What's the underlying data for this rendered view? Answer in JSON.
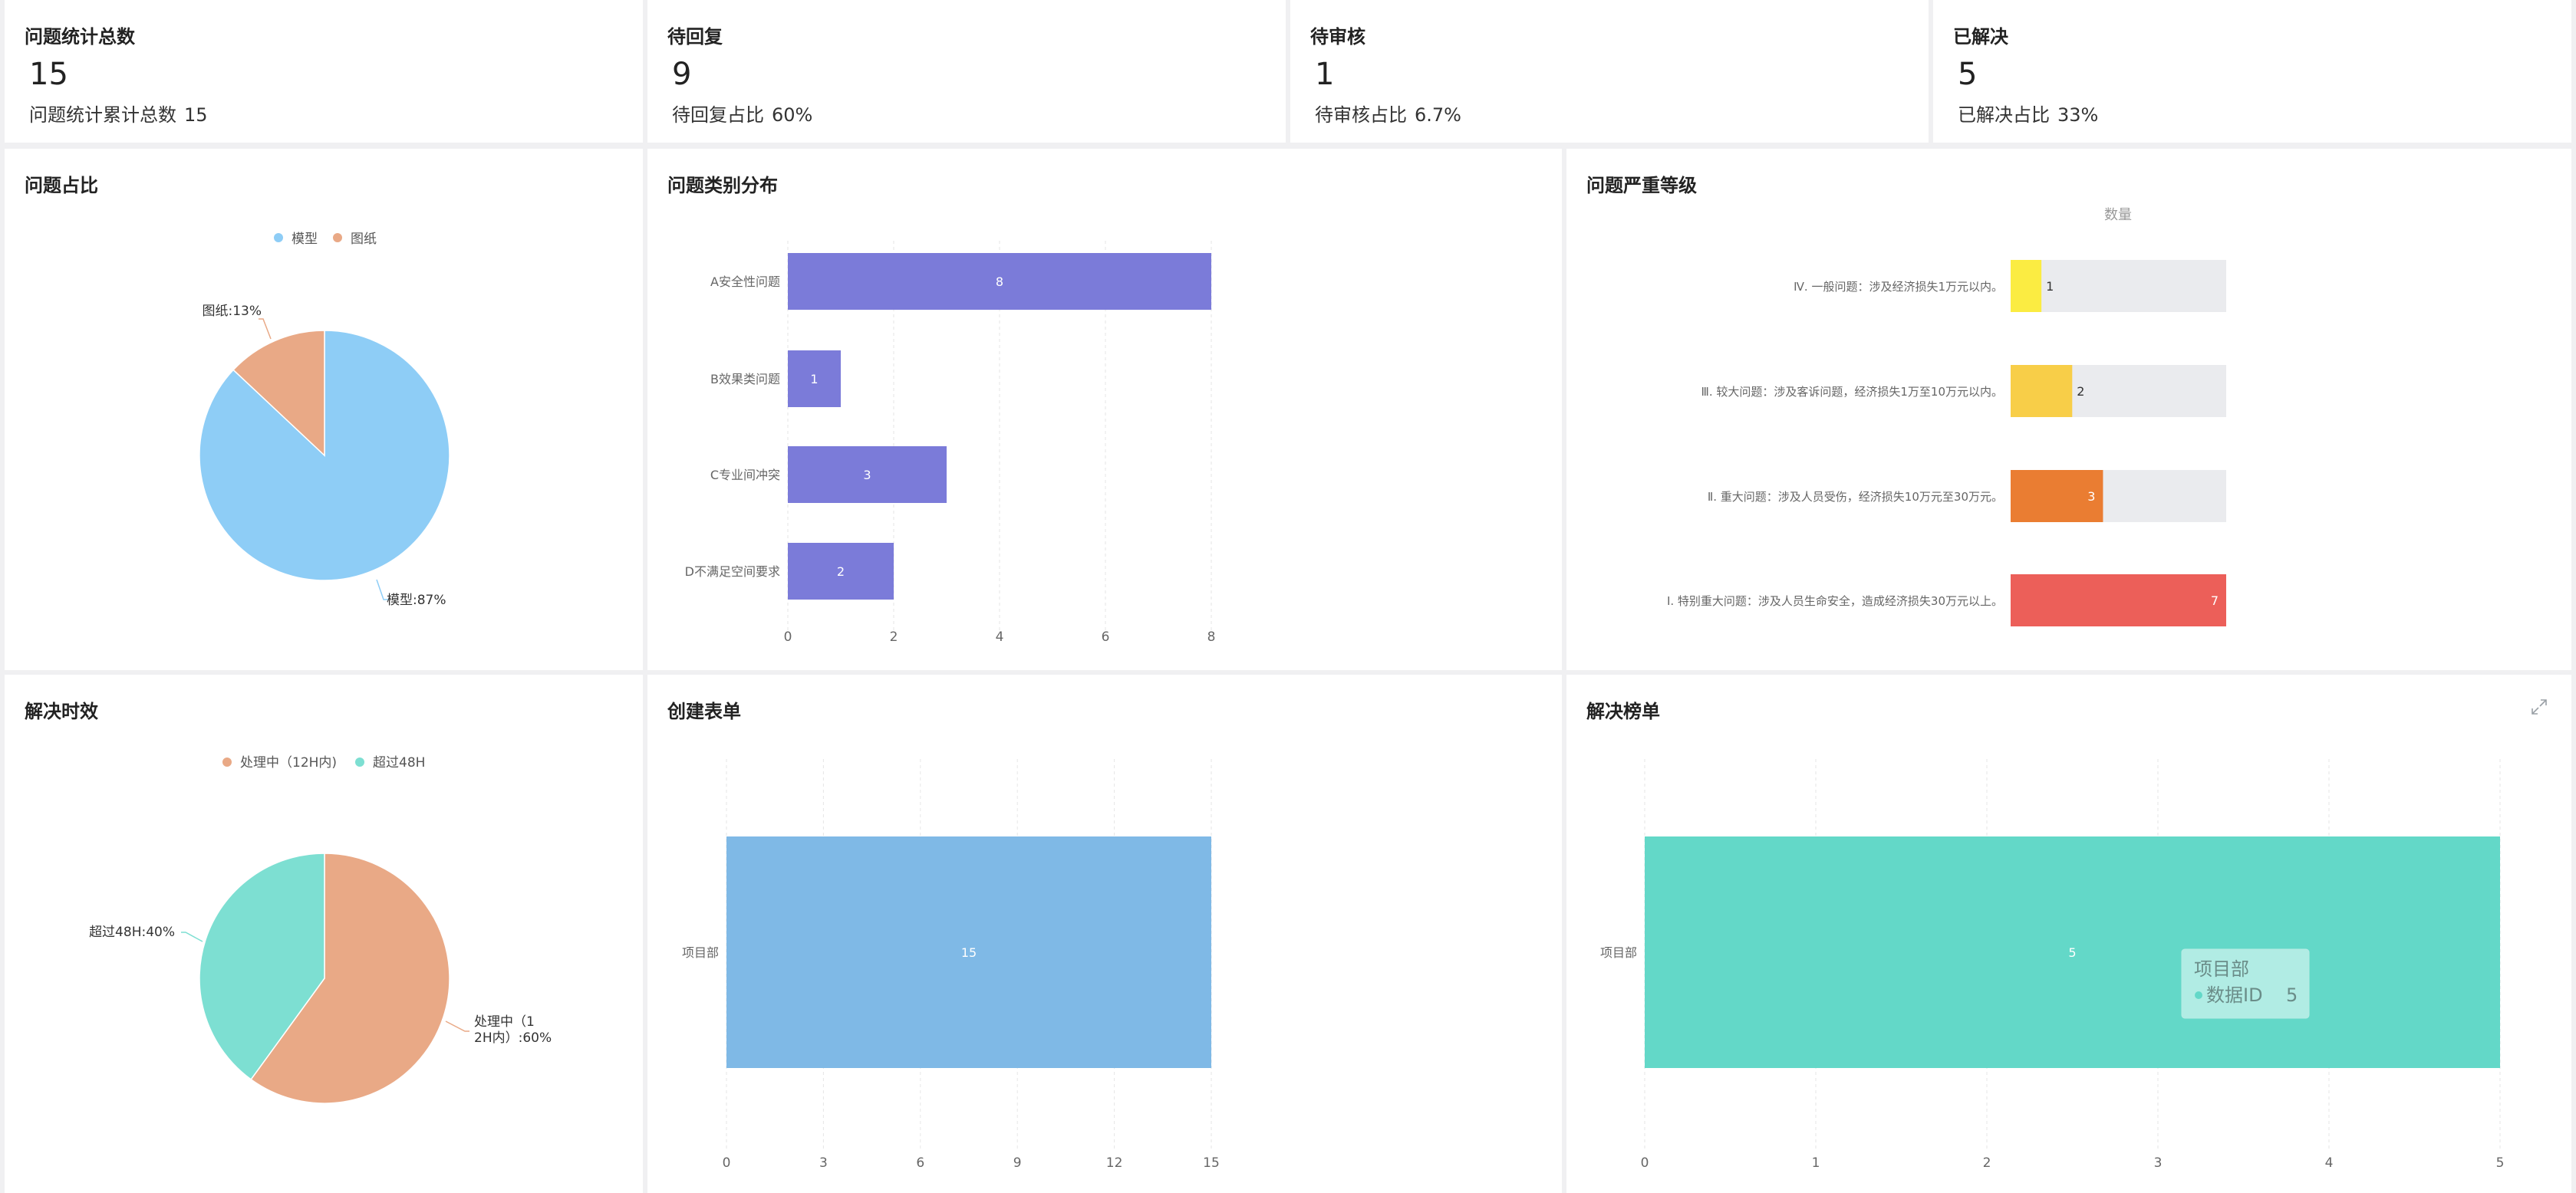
{
  "stats": [
    {
      "title": "问题统计总数",
      "value": "15",
      "sub_label": "问题统计累计总数",
      "sub_value": "15"
    },
    {
      "title": "待回复",
      "value": "9",
      "sub_label": "待回复占比",
      "sub_value": "60%"
    },
    {
      "title": "待审核",
      "value": "1",
      "sub_label": "待审核占比",
      "sub_value": "6.7%"
    },
    {
      "title": "已解决",
      "value": "5",
      "sub_label": "已解决占比",
      "sub_value": "33%"
    }
  ],
  "cards": {
    "proportion": "问题占比",
    "category": "问题类别分布",
    "severity": "问题严重等级",
    "efficiency": "解决时效",
    "forms": "创建表单",
    "ranking": "解决榜单"
  },
  "colors": {
    "model": "#8ecdf6",
    "drawing": "#e9a986",
    "category_bar": "#7b7bd9",
    "forms_bar": "#7fb9e6",
    "ranking_bar": "#63d8c8",
    "processing": "#e9a986",
    "over48": "#7ddfd2",
    "sev4": "#fbec42",
    "sev3": "#f8ce48",
    "sev2": "#ea7d32",
    "sev1": "#ec5f59",
    "track": "#eaebee"
  },
  "chart_data": [
    {
      "type": "pie",
      "title": "问题占比",
      "legend_position": "top-center",
      "slices": [
        {
          "name": "模型",
          "value": 87,
          "label": "模型:87%"
        },
        {
          "name": "图纸",
          "value": 13,
          "label": "图纸:13%"
        }
      ]
    },
    {
      "type": "bar",
      "orientation": "horizontal",
      "title": "问题类别分布",
      "categories": [
        "A安全性问题",
        "B效果类问题",
        "C专业间冲突",
        "D不满足空间要求"
      ],
      "values": [
        8,
        1,
        3,
        2
      ],
      "xlim": [
        0,
        8
      ],
      "xticks": [
        0,
        2,
        4,
        6,
        8
      ],
      "grid": true
    },
    {
      "type": "bar",
      "orientation": "horizontal",
      "title": "问题严重等级",
      "series_label": "数量",
      "categories": [
        "Ⅳ. 一般问题：涉及经济损失1万元以内。",
        "Ⅲ. 较大问题：涉及客诉问题，经济损失1万至10万元以内。",
        "Ⅱ. 重大问题：涉及人员受伤，经济损失10万元至30万元。",
        "Ⅰ. 特别重大问题：涉及人员生命安全，造成经济损失30万元以上。"
      ],
      "values": [
        1,
        2,
        3,
        7
      ],
      "max": 7
    },
    {
      "type": "pie",
      "title": "解决时效",
      "legend_position": "top-center",
      "slices": [
        {
          "name": "处理中（12H内)",
          "value": 60,
          "label_line1": "处理中（1",
          "label_line2": "2H内）:60%"
        },
        {
          "name": "超过48H",
          "value": 40,
          "label": "超过48H:40%"
        }
      ]
    },
    {
      "type": "bar",
      "orientation": "horizontal",
      "title": "创建表单",
      "categories": [
        "项目部"
      ],
      "values": [
        15
      ],
      "xlim": [
        0,
        15
      ],
      "xticks": [
        0,
        3,
        6,
        9,
        12,
        15
      ],
      "grid": true
    },
    {
      "type": "bar",
      "orientation": "horizontal",
      "title": "解决榜单",
      "categories": [
        "项目部"
      ],
      "values": [
        5
      ],
      "xlim": [
        0,
        5
      ],
      "xticks": [
        0,
        1,
        2,
        3,
        4,
        5
      ],
      "grid": true,
      "tooltip": {
        "title": "项目部",
        "series": "数据ID",
        "value": "5"
      }
    }
  ]
}
